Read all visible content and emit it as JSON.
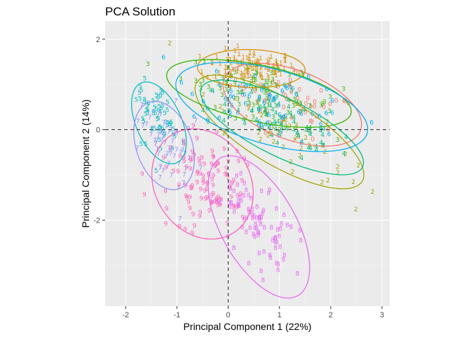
{
  "chart_data": {
    "type": "scatter",
    "title": "PCA Solution",
    "xlabel": "Principal Component 1 (22%)",
    "ylabel": "Principal Component 2 (14%)",
    "xlim": [
      -2.4,
      3.15
    ],
    "ylim": [
      -3.9,
      2.4
    ],
    "x_ticks": [
      -2,
      -1,
      0,
      1,
      2,
      3
    ],
    "y_ticks": [
      -2,
      0,
      2
    ],
    "grid": true,
    "reference_lines": {
      "x": 0,
      "y": 0,
      "style": "dashed"
    },
    "point_marker": "digit label",
    "series": [
      {
        "label": "0",
        "color": "#F8766D",
        "center": [
          1.25,
          0.55
        ],
        "ellipse": {
          "rx": 1.45,
          "ry": 0.75,
          "angle": -25
        },
        "n": 60
      },
      {
        "label": "1",
        "color": "#D89000",
        "center": [
          0.45,
          1.35
        ],
        "ellipse": {
          "rx": 1.05,
          "ry": 0.42,
          "angle": -2
        },
        "n": 110
      },
      {
        "label": "2",
        "color": "#A3A500",
        "center": [
          1.0,
          -0.05
        ],
        "ellipse": {
          "rx": 1.95,
          "ry": 0.7,
          "angle": -35
        },
        "n": 55
      },
      {
        "label": "3",
        "color": "#39B600",
        "center": [
          0.6,
          0.8
        ],
        "ellipse": {
          "rx": 1.85,
          "ry": 0.62,
          "angle": -14
        },
        "n": 90
      },
      {
        "label": "4",
        "color": "#00BF7D",
        "center": [
          1.05,
          0.05
        ],
        "ellipse": {
          "rx": 1.8,
          "ry": 0.62,
          "angle": -30
        },
        "n": 70
      },
      {
        "label": "5",
        "color": "#00BFC4",
        "center": [
          -1.35,
          0.15
        ],
        "ellipse": {
          "rx": 0.45,
          "ry": 0.95,
          "angle": 20
        },
        "n": 60
      },
      {
        "label": "6",
        "color": "#00B0F6",
        "center": [
          0.85,
          0.5
        ],
        "ellipse": {
          "rx": 1.95,
          "ry": 0.82,
          "angle": -18
        },
        "n": 70
      },
      {
        "label": "7",
        "color": "#9590FF",
        "center": [
          -1.25,
          -0.35
        ],
        "ellipse": {
          "rx": 0.55,
          "ry": 1.0,
          "angle": 15
        },
        "n": 60
      },
      {
        "label": "8",
        "color": "#E76BF3",
        "center": [
          0.6,
          -2.15
        ],
        "ellipse": {
          "rx": 0.75,
          "ry": 1.7,
          "angle": 25
        },
        "n": 90
      },
      {
        "label": "9",
        "color": "#FF62BC",
        "center": [
          -0.5,
          -1.2
        ],
        "ellipse": {
          "rx": 0.95,
          "ry": 1.25,
          "angle": 20
        },
        "n": 110
      }
    ]
  }
}
